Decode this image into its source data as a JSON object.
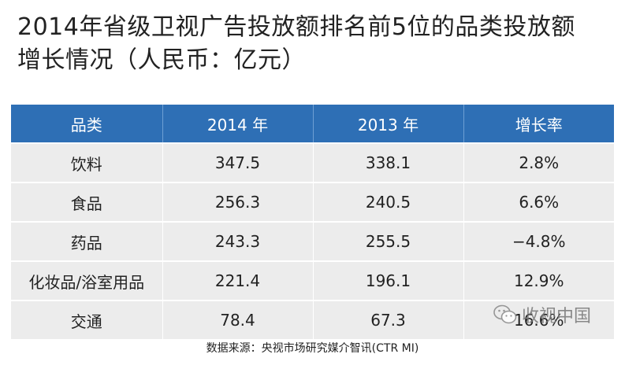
{
  "title": {
    "line1": "2014年省级卫视广告投放额排名前5位的品类投放额",
    "line2": "增长情况（人民币：亿元）"
  },
  "chart_data": {
    "type": "table",
    "columns": [
      "品类",
      "2014 年",
      "2013 年",
      "增长率"
    ],
    "rows": [
      [
        "饮料",
        "347.5",
        "338.1",
        "2.8%"
      ],
      [
        "食品",
        "256.3",
        "240.5",
        "6.6%"
      ],
      [
        "药品",
        "243.3",
        "255.5",
        "−4.8%"
      ],
      [
        "化妆品/浴室用品",
        "221.4",
        "196.1",
        "12.9%"
      ],
      [
        "交通",
        "78.4",
        "67.3",
        "16.6%"
      ]
    ]
  },
  "source": "数据来源：央视市场研究媒介智讯(CTR MI)",
  "watermark": "收视中国",
  "colors": {
    "header_bg": "#2e6fb5",
    "row_bg": "#ececec"
  }
}
